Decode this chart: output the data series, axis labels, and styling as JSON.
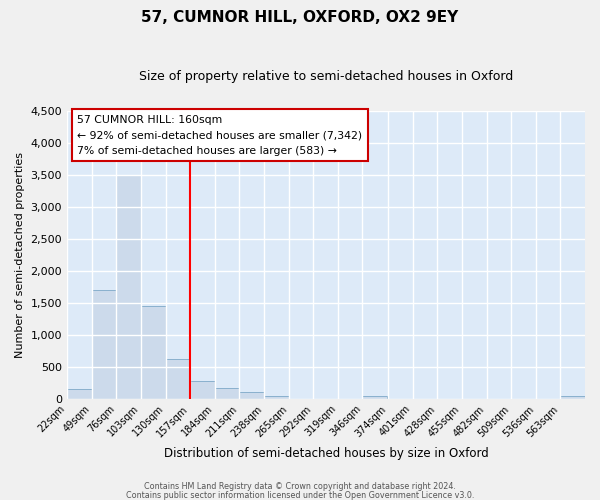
{
  "title": "57, CUMNOR HILL, OXFORD, OX2 9EY",
  "subtitle": "Size of property relative to semi-detached houses in Oxford",
  "xlabel": "Distribution of semi-detached houses by size in Oxford",
  "ylabel": "Number of semi-detached properties",
  "bar_color": "#ccdaeb",
  "bar_edge_color": "#7da8c8",
  "background_color": "#ddeaf8",
  "fig_background": "#f0f0f0",
  "grid_color": "#ffffff",
  "red_line_x": 157,
  "bin_edges": [
    22,
    49,
    76,
    103,
    130,
    157,
    184,
    211,
    238,
    265,
    292,
    319,
    346,
    374,
    401,
    428,
    455,
    482,
    509,
    536,
    563,
    590
  ],
  "bar_heights": [
    150,
    1700,
    3500,
    1450,
    630,
    280,
    170,
    100,
    50,
    0,
    0,
    0,
    50,
    0,
    0,
    0,
    0,
    0,
    0,
    0,
    50
  ],
  "ylim": [
    0,
    4500
  ],
  "yticks": [
    0,
    500,
    1000,
    1500,
    2000,
    2500,
    3000,
    3500,
    4000,
    4500
  ],
  "annotation_title": "57 CUMNOR HILL: 160sqm",
  "annotation_smaller": "← 92% of semi-detached houses are smaller (7,342)",
  "annotation_larger": "7% of semi-detached houses are larger (583) →",
  "footer1": "Contains HM Land Registry data © Crown copyright and database right 2024.",
  "footer2": "Contains public sector information licensed under the Open Government Licence v3.0."
}
